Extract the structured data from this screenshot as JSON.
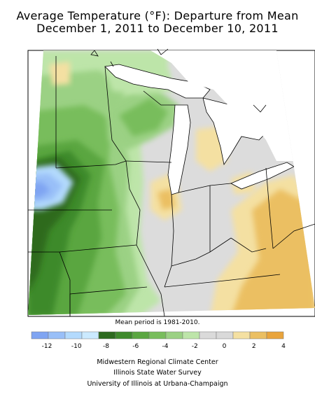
{
  "title_line1": "Average Temperature (°F): Departure from Mean",
  "title_line2": "December 1, 2011 to December 10, 2011",
  "mean_note": "Mean period is 1981-2010.",
  "legend": {
    "colors": [
      "#7fa4f2",
      "#99bff8",
      "#b3dafd",
      "#cbeaff",
      "#2d6a1f",
      "#3e8a2c",
      "#5aa641",
      "#78bd5c",
      "#9bd184",
      "#bde5a9",
      "#dadada",
      "#d9d9d9",
      "#f4e0a2",
      "#ebbf62",
      "#e9a43c"
    ],
    "labels": [
      "-12",
      "-10",
      "-8",
      "-6",
      "-4",
      "-2",
      "0",
      "2",
      "4"
    ]
  },
  "credits": {
    "line1": "Midwestern Regional Climate Center",
    "line2": "Illinois State Water Survey",
    "line3": "University of Illinois at Urbana-Champaign"
  }
}
